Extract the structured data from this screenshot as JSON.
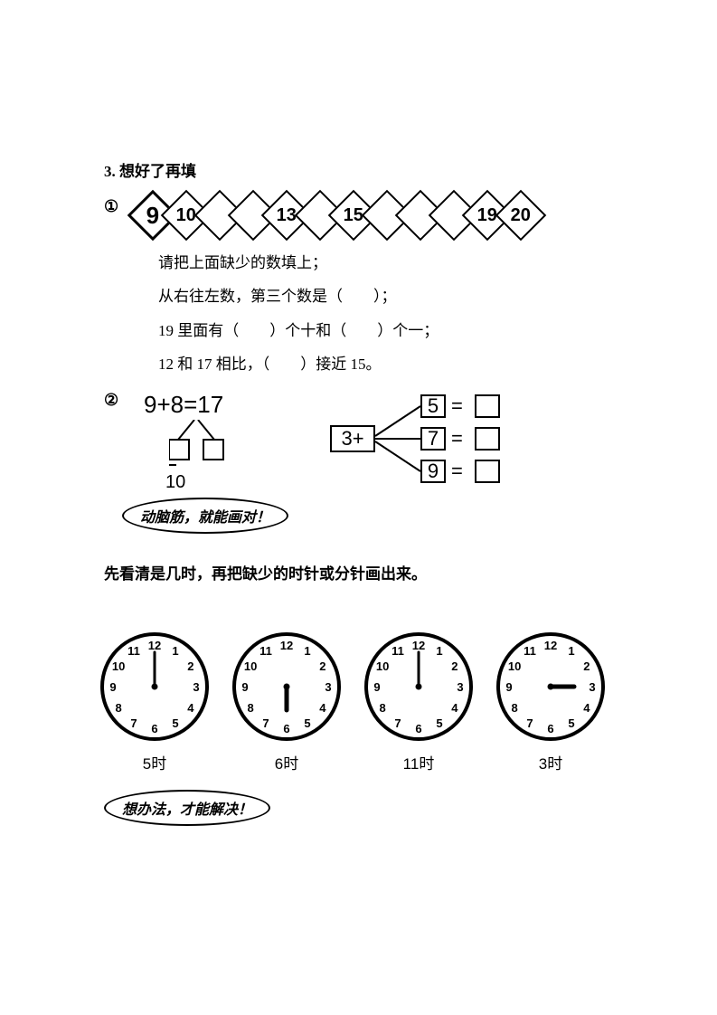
{
  "section_title": "3. 想好了再填",
  "q1": {
    "marker": "①",
    "diamonds": [
      "9",
      "10",
      "",
      "",
      "13",
      "",
      "15",
      "",
      "",
      "",
      "19",
      "20"
    ],
    "lines": [
      "请把上面缺少的数填上；",
      "从右往左数，第三个数是（　　）；",
      "19 里面有（　　）个十和（　　）个一；",
      "12 和 17 相比，（　　）接近 15。"
    ]
  },
  "q2": {
    "marker": "②",
    "equation": "9+8=17",
    "ten_label": "10",
    "branch_left": "3+",
    "branch_values": [
      "5",
      "7",
      "9"
    ],
    "equals": "="
  },
  "banner1": "动脑筋，就能画对！",
  "clock_instruction": "先看清是几时，再把缺少的时针或分针画出来。",
  "clocks": [
    {
      "label": "5时",
      "hand_angle": 0,
      "hand_len": 38,
      "is_hour": false
    },
    {
      "label": "6时",
      "hand_angle": 180,
      "hand_len": 26,
      "is_hour": true
    },
    {
      "label": "11时",
      "hand_angle": 0,
      "hand_len": 38,
      "is_hour": false
    },
    {
      "label": "3时",
      "hand_angle": 90,
      "hand_len": 26,
      "is_hour": true
    }
  ],
  "banner2": "想办法，才能解决！",
  "clock_numbers": [
    "12",
    "1",
    "2",
    "3",
    "4",
    "5",
    "6",
    "7",
    "8",
    "9",
    "10",
    "11"
  ],
  "colors": {
    "fg": "#000000",
    "bg": "#ffffff"
  }
}
